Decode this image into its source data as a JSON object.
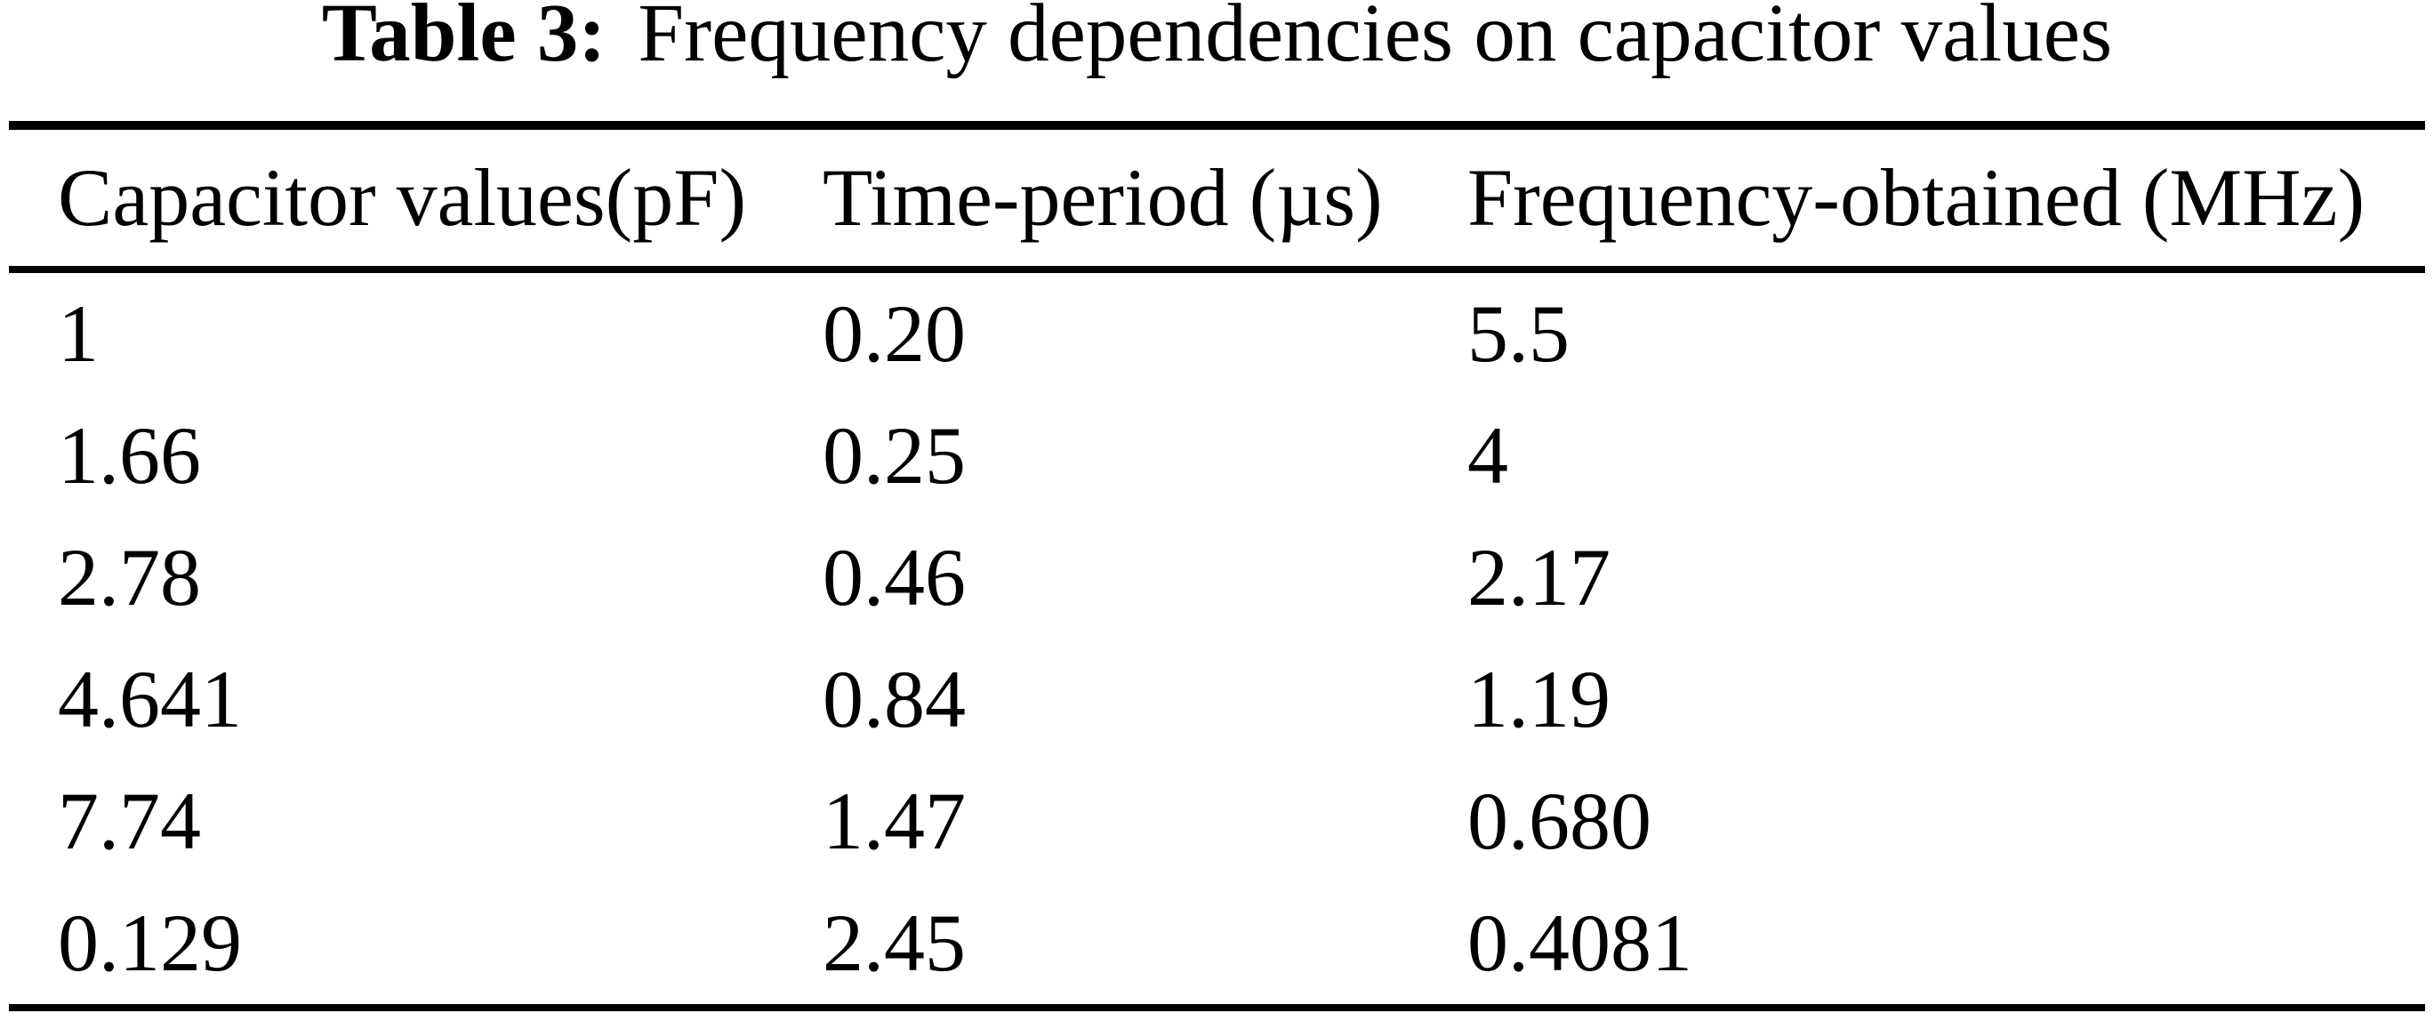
{
  "page": {
    "background_color": "#ffffff",
    "text_color": "#000000"
  },
  "table": {
    "caption_label": "Table 3:",
    "caption_text": "Frequency dependencies on capacitor values",
    "columns": [
      "Capacitor values(pF)",
      "Time-period (µs)",
      "Frequency-obtained (MHz)"
    ],
    "rows": [
      [
        "1",
        "0.20",
        "5.5"
      ],
      [
        "1.66",
        "0.25",
        "4"
      ],
      [
        "2.78",
        "0.46",
        "2.17"
      ],
      [
        "4.641",
        "0.84",
        "1.19"
      ],
      [
        "7.74",
        "1.47",
        "0.680"
      ],
      [
        "0.129",
        "2.45",
        "0.4081"
      ]
    ]
  },
  "chart_data": {
    "type": "table",
    "title": "Table 3: Frequency dependencies on capacitor values",
    "columns": [
      "Capacitor values(pF)",
      "Time-period (µs)",
      "Frequency-obtained (MHz)"
    ],
    "rows": [
      [
        1,
        0.2,
        5.5
      ],
      [
        1.66,
        0.25,
        4
      ],
      [
        2.78,
        0.46,
        2.17
      ],
      [
        4.641,
        0.84,
        1.19
      ],
      [
        7.74,
        1.47,
        0.68
      ],
      [
        0.129,
        2.45,
        0.4081
      ]
    ]
  }
}
